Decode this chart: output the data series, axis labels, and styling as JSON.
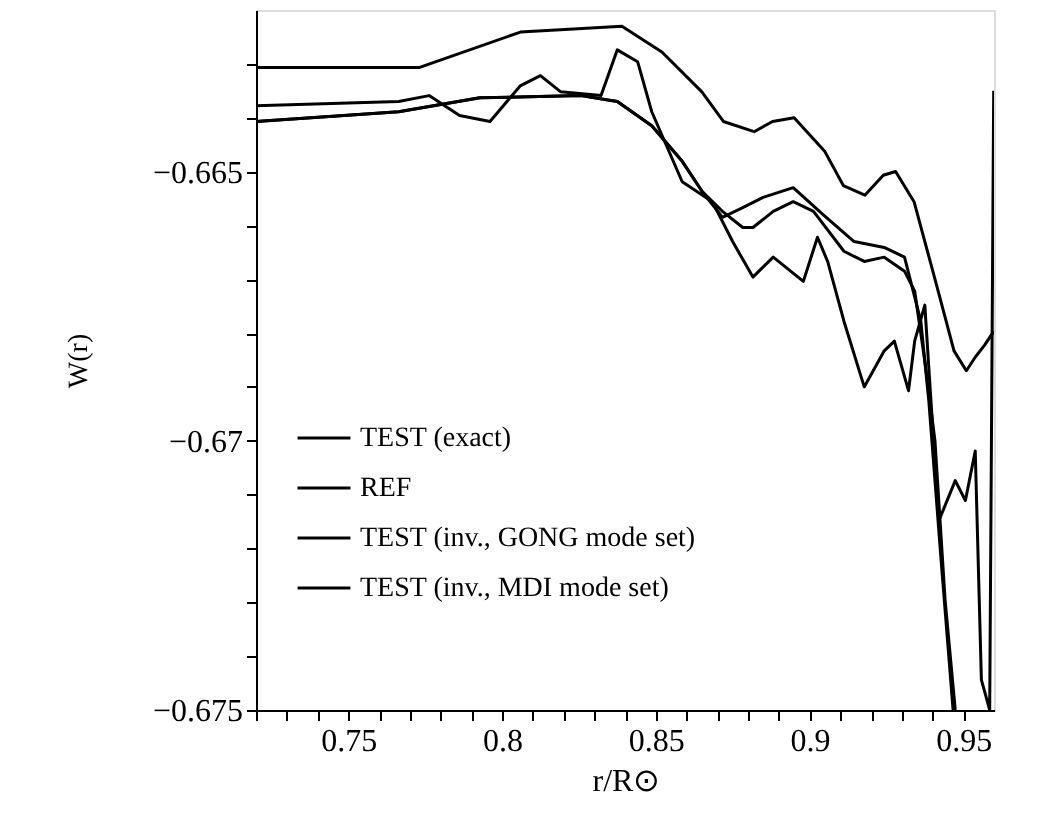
{
  "chart_data": {
    "type": "line",
    "xlabel": "r/R⊙",
    "ylabel": "W(r)",
    "xlim": [
      0.72,
      0.96
    ],
    "ylim": [
      -0.675,
      -0.662
    ],
    "xticks": [
      {
        "value": 0.72,
        "label": null
      },
      {
        "value": 0.73,
        "label": null
      },
      {
        "value": 0.74,
        "label": null
      },
      0.75,
      {
        "value": 0.76,
        "label": null
      },
      {
        "value": 0.77,
        "label": null
      },
      {
        "value": 0.78,
        "label": null
      },
      {
        "value": 0.79,
        "label": null
      },
      0.8,
      {
        "value": 0.81,
        "label": null
      },
      {
        "value": 0.82,
        "label": null
      },
      {
        "value": 0.83,
        "label": null
      },
      {
        "value": 0.84,
        "label": null
      },
      0.85,
      {
        "value": 0.86,
        "label": null
      },
      {
        "value": 0.87,
        "label": null
      },
      {
        "value": 0.88,
        "label": null
      },
      {
        "value": 0.89,
        "label": null
      },
      0.9,
      {
        "value": 0.91,
        "label": null
      },
      {
        "value": 0.92,
        "label": null
      },
      {
        "value": 0.93,
        "label": null
      },
      {
        "value": 0.94,
        "label": null
      },
      0.95
    ],
    "yticks": [
      -0.675,
      {
        "value": -0.674,
        "label": null
      },
      {
        "value": -0.673,
        "label": null
      },
      {
        "value": -0.672,
        "label": null
      },
      {
        "value": -0.671,
        "label": null
      },
      -0.67,
      {
        "value": -0.669,
        "label": null
      },
      {
        "value": -0.668,
        "label": null
      },
      {
        "value": -0.667,
        "label": null
      },
      {
        "value": -0.666,
        "label": null
      },
      -0.665,
      {
        "value": -0.664,
        "label": null
      },
      {
        "value": -0.663,
        "label": null
      }
    ],
    "grid": false,
    "legend": "bottom left",
    "line_style": "solid",
    "marker": "none",
    "series": [
      {
        "name": "TEST (exact)",
        "color": "#000000",
        "x": [
          0.72,
          0.7664,
          0.7928,
          0.8257,
          0.8375,
          0.8487,
          0.8586,
          0.8651,
          0.8717,
          0.8783,
          0.8816,
          0.8882,
          0.8947,
          0.9013,
          0.9112,
          0.9178,
          0.9243,
          0.9309,
          0.9342,
          0.9375,
          0.9408,
          0.9441,
          0.9474
        ],
        "values": [
          -0.66407,
          -0.66389,
          -0.66363,
          -0.66359,
          -0.6637,
          -0.66415,
          -0.66481,
          -0.66537,
          -0.66574,
          -0.66604,
          -0.66604,
          -0.66574,
          -0.66556,
          -0.66574,
          -0.66648,
          -0.66667,
          -0.66659,
          -0.66685,
          -0.66722,
          -0.66852,
          -0.67,
          -0.67296,
          -0.675
        ]
      },
      {
        "name": "REF",
        "color": "#000000",
        "x": [
          0.72,
          0.7664,
          0.7928,
          0.8257,
          0.8375,
          0.8487,
          0.8586,
          0.8651,
          0.8717,
          0.8783,
          0.8849,
          0.8947,
          0.9046,
          0.9145,
          0.9243,
          0.9309,
          0.9362,
          0.9388,
          0.9428,
          0.9467
        ],
        "values": [
          -0.66407,
          -0.66389,
          -0.66363,
          -0.66359,
          -0.6637,
          -0.66415,
          -0.66481,
          -0.66537,
          -0.66585,
          -0.66567,
          -0.66548,
          -0.6653,
          -0.66581,
          -0.6663,
          -0.66641,
          -0.66659,
          -0.66778,
          -0.66926,
          -0.67222,
          -0.675
        ]
      },
      {
        "name": "TEST (inv., GONG mode set)",
        "color": "#000000",
        "x": [
          0.72,
          0.773,
          0.806,
          0.839,
          0.852,
          0.865,
          0.872,
          0.882,
          0.888,
          0.895,
          0.905,
          0.911,
          0.918,
          0.924,
          0.928,
          0.934,
          0.941,
          0.947,
          0.951,
          0.954,
          0.957,
          0.96
        ],
        "values": [
          -0.66307,
          -0.66307,
          -0.66241,
          -0.6623,
          -0.66278,
          -0.66352,
          -0.66407,
          -0.66426,
          -0.66407,
          -0.664,
          -0.66463,
          -0.66526,
          -0.66544,
          -0.66507,
          -0.665,
          -0.66556,
          -0.66704,
          -0.66833,
          -0.6687,
          -0.66844,
          -0.66822,
          -0.66796
        ]
      },
      {
        "name": "TEST (inv., MDI mode set)",
        "color": "#000000",
        "x": [
          0.72,
          0.7664,
          0.7763,
          0.7862,
          0.7961,
          0.8059,
          0.8125,
          0.8191,
          0.8322,
          0.8375,
          0.8441,
          0.8487,
          0.8586,
          0.8684,
          0.875,
          0.8816,
          0.8882,
          0.898,
          0.9026,
          0.9059,
          0.9112,
          0.9178,
          0.9243,
          0.9276,
          0.9322,
          0.9342,
          0.9375,
          0.9395,
          0.9421,
          0.9474,
          0.9507,
          0.9539,
          0.9559,
          0.9586,
          0.9599
        ],
        "values": [
          -0.66378,
          -0.6637,
          -0.66359,
          -0.66396,
          -0.66407,
          -0.66341,
          -0.66322,
          -0.66352,
          -0.66359,
          -0.66274,
          -0.66296,
          -0.66389,
          -0.66519,
          -0.66556,
          -0.6663,
          -0.66696,
          -0.66659,
          -0.66704,
          -0.66622,
          -0.66667,
          -0.66778,
          -0.669,
          -0.66833,
          -0.66815,
          -0.66907,
          -0.66815,
          -0.66748,
          -0.66926,
          -0.67148,
          -0.67074,
          -0.67111,
          -0.67019,
          -0.67444,
          -0.675,
          -0.6635
        ]
      }
    ]
  }
}
